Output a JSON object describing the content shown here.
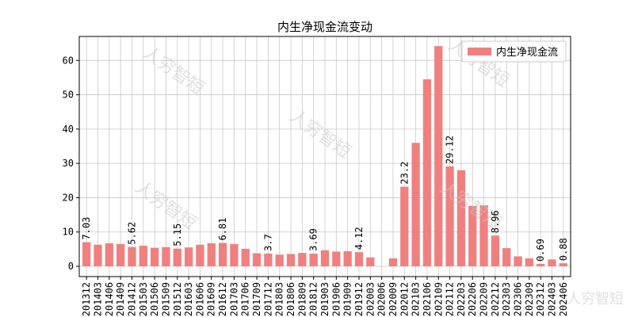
{
  "chart_data": {
    "type": "bar",
    "title": "内生净现金流变动",
    "xlabel": "",
    "ylabel": "",
    "ylim": [
      -3,
      67
    ],
    "yticks": [
      0,
      10,
      20,
      30,
      40,
      50,
      60
    ],
    "grid": true,
    "legend_position": "top-right",
    "categories": [
      "201312",
      "201403",
      "201406",
      "201409",
      "201412",
      "201503",
      "201506",
      "201509",
      "201512",
      "201603",
      "201606",
      "201609",
      "201612",
      "201703",
      "201706",
      "201709",
      "201712",
      "201803",
      "201806",
      "201809",
      "201812",
      "201903",
      "201906",
      "201909",
      "201912",
      "202003",
      "202006",
      "202009",
      "202012",
      "202103",
      "202106",
      "202109",
      "202112",
      "202203",
      "202206",
      "202209",
      "202212",
      "202303",
      "202306",
      "202309",
      "202312",
      "202403",
      "202406"
    ],
    "series": [
      {
        "name": "内生净现金流",
        "color": "#f08080",
        "values": [
          7.03,
          6.3,
          6.7,
          6.5,
          5.62,
          6.0,
          5.4,
          5.6,
          5.15,
          5.5,
          6.3,
          6.7,
          6.81,
          6.5,
          5.1,
          3.8,
          3.7,
          3.4,
          3.6,
          3.9,
          3.69,
          4.7,
          4.3,
          4.4,
          4.12,
          2.6,
          0.0,
          2.3,
          23.2,
          36.0,
          54.5,
          64.2,
          29.12,
          28.0,
          17.6,
          17.8,
          8.96,
          5.3,
          2.9,
          2.3,
          0.69,
          2.0,
          0.88
        ]
      }
    ],
    "data_labels": [
      {
        "category": "201312",
        "text": "7.03"
      },
      {
        "category": "201412",
        "text": "5.62"
      },
      {
        "category": "201512",
        "text": "5.15"
      },
      {
        "category": "201612",
        "text": "6.81"
      },
      {
        "category": "201712",
        "text": "3.7"
      },
      {
        "category": "201812",
        "text": "3.69"
      },
      {
        "category": "201912",
        "text": "4.12"
      },
      {
        "category": "202012",
        "text": "23.2"
      },
      {
        "category": "202112",
        "text": "29.12"
      },
      {
        "category": "202212",
        "text": "8.96"
      },
      {
        "category": "202312",
        "text": "0.69"
      },
      {
        "category": "202406",
        "text": "0.88"
      }
    ]
  },
  "watermark": {
    "text": "人穷智短"
  }
}
